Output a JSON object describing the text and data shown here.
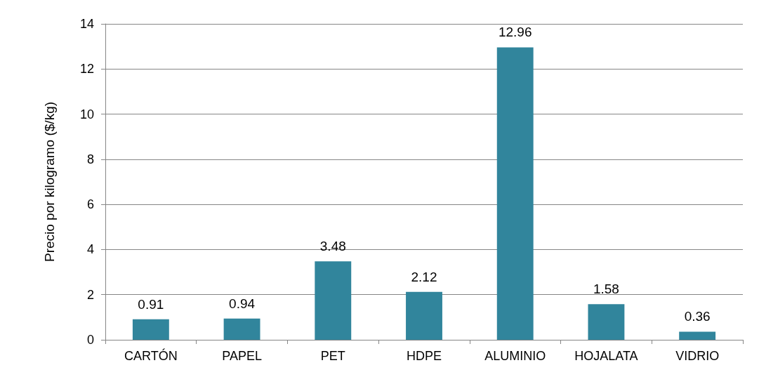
{
  "chart_data": {
    "type": "bar",
    "ylabel": "Precio por kilogramo ($/kg)",
    "categories": [
      "CARTÓN",
      "PAPEL",
      "PET",
      "HDPE",
      "ALUMINIO",
      "HOJALATA",
      "VIDRIO"
    ],
    "values": [
      0.91,
      0.94,
      3.48,
      2.12,
      12.96,
      1.58,
      0.36
    ],
    "color": "#31859c",
    "ylim": [
      0,
      14
    ],
    "yticks": [
      0,
      2,
      4,
      6,
      8,
      10,
      12,
      14
    ],
    "grid": "y",
    "data_labels": true
  }
}
